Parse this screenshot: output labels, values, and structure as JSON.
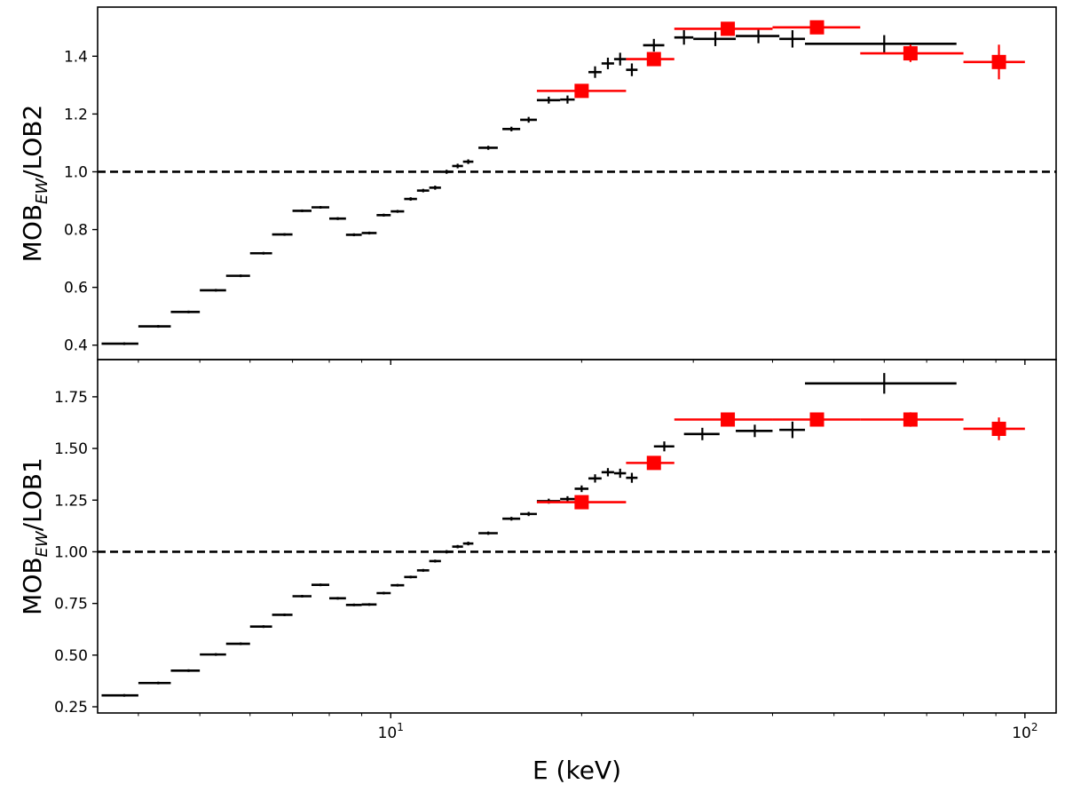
{
  "chart_data": [
    {
      "type": "scatter",
      "panel": "top",
      "ylabel": {
        "main": "MOB",
        "sub": "EW",
        "rest": "/LOB2"
      },
      "xlabel": "",
      "xscale": "log",
      "xlim": [
        3.45,
        112
      ],
      "ylim": [
        0.35,
        1.57
      ],
      "yticks": [
        "0.4",
        "0.6",
        "0.8",
        "1.0",
        "1.2",
        "1.4"
      ],
      "reference_line": {
        "y": 1.0,
        "style": "dashed"
      },
      "grid": false,
      "series": [
        {
          "color": "#000000",
          "marker": "errorbar",
          "points": [
            {
              "x": 3.8,
              "y": 0.405,
              "xlo": 3.5,
              "xhi": 4.0,
              "yerr": 0.004
            },
            {
              "x": 4.3,
              "y": 0.465,
              "xlo": 4.0,
              "xhi": 4.5,
              "yerr": 0.004
            },
            {
              "x": 4.8,
              "y": 0.515,
              "xlo": 4.5,
              "xhi": 5.0,
              "yerr": 0.004
            },
            {
              "x": 5.3,
              "y": 0.59,
              "xlo": 5.0,
              "xhi": 5.5,
              "yerr": 0.004
            },
            {
              "x": 5.8,
              "y": 0.64,
              "xlo": 5.5,
              "xhi": 6.0,
              "yerr": 0.004
            },
            {
              "x": 6.3,
              "y": 0.718,
              "xlo": 6.0,
              "xhi": 6.5,
              "yerr": 0.004
            },
            {
              "x": 6.8,
              "y": 0.783,
              "xlo": 6.5,
              "xhi": 7.0,
              "yerr": 0.004
            },
            {
              "x": 7.25,
              "y": 0.865,
              "xlo": 7.0,
              "xhi": 7.5,
              "yerr": 0.004
            },
            {
              "x": 7.75,
              "y": 0.877,
              "xlo": 7.5,
              "xhi": 8.0,
              "yerr": 0.004
            },
            {
              "x": 8.25,
              "y": 0.838,
              "xlo": 8.0,
              "xhi": 8.5,
              "yerr": 0.005
            },
            {
              "x": 8.75,
              "y": 0.782,
              "xlo": 8.5,
              "xhi": 9.0,
              "yerr": 0.005
            },
            {
              "x": 9.25,
              "y": 0.788,
              "xlo": 9.0,
              "xhi": 9.5,
              "yerr": 0.005
            },
            {
              "x": 9.75,
              "y": 0.85,
              "xlo": 9.5,
              "xhi": 10.0,
              "yerr": 0.005
            },
            {
              "x": 10.25,
              "y": 0.863,
              "xlo": 10.0,
              "xhi": 10.5,
              "yerr": 0.005
            },
            {
              "x": 10.75,
              "y": 0.906,
              "xlo": 10.5,
              "xhi": 11.0,
              "yerr": 0.006
            },
            {
              "x": 11.25,
              "y": 0.935,
              "xlo": 11.0,
              "xhi": 11.5,
              "yerr": 0.006
            },
            {
              "x": 11.75,
              "y": 0.945,
              "xlo": 11.5,
              "xhi": 12.0,
              "yerr": 0.007
            },
            {
              "x": 12.25,
              "y": 1.0,
              "xlo": 12.0,
              "xhi": 12.5,
              "yerr": 0.007
            },
            {
              "x": 12.75,
              "y": 1.02,
              "xlo": 12.5,
              "xhi": 13.0,
              "yerr": 0.008
            },
            {
              "x": 13.25,
              "y": 1.035,
              "xlo": 13.0,
              "xhi": 13.5,
              "yerr": 0.008
            },
            {
              "x": 14.25,
              "y": 1.083,
              "xlo": 13.75,
              "xhi": 14.75,
              "yerr": 0.007
            },
            {
              "x": 15.5,
              "y": 1.148,
              "xlo": 15.0,
              "xhi": 16.0,
              "yerr": 0.008
            },
            {
              "x": 16.5,
              "y": 1.18,
              "xlo": 16.0,
              "xhi": 17.0,
              "yerr": 0.01
            },
            {
              "x": 17.75,
              "y": 1.248,
              "xlo": 17.0,
              "xhi": 18.5,
              "yerr": 0.012
            },
            {
              "x": 19.0,
              "y": 1.25,
              "xlo": 18.5,
              "xhi": 19.5,
              "yerr": 0.014
            },
            {
              "x": 20.0,
              "y": 1.283,
              "xlo": 19.5,
              "xhi": 20.5,
              "yerr": 0.016
            },
            {
              "x": 21.0,
              "y": 1.345,
              "xlo": 20.5,
              "xhi": 21.5,
              "yerr": 0.02
            },
            {
              "x": 22.0,
              "y": 1.375,
              "xlo": 21.5,
              "xhi": 22.5,
              "yerr": 0.02
            },
            {
              "x": 23.0,
              "y": 1.39,
              "xlo": 22.5,
              "xhi": 23.5,
              "yerr": 0.022
            },
            {
              "x": 24.0,
              "y": 1.353,
              "xlo": 23.5,
              "xhi": 24.5,
              "yerr": 0.022
            },
            {
              "x": 26.0,
              "y": 1.438,
              "xlo": 25.0,
              "xhi": 27.0,
              "yerr": 0.022
            },
            {
              "x": 29.0,
              "y": 1.465,
              "xlo": 28.0,
              "xhi": 30.0,
              "yerr": 0.025
            },
            {
              "x": 32.5,
              "y": 1.46,
              "xlo": 30.0,
              "xhi": 35.0,
              "yerr": 0.025
            },
            {
              "x": 38.0,
              "y": 1.47,
              "xlo": 35.0,
              "xhi": 41.0,
              "yerr": 0.025
            },
            {
              "x": 43.0,
              "y": 1.46,
              "xlo": 41.0,
              "xhi": 45.0,
              "yerr": 0.03
            },
            {
              "x": 60.0,
              "y": 1.443,
              "xlo": 45.0,
              "xhi": 78.0,
              "yerr": 0.03
            }
          ]
        },
        {
          "color": "#ff0000",
          "marker": "square",
          "points": [
            {
              "x": 20.0,
              "y": 1.28,
              "xlo": 17.0,
              "xhi": 23.5,
              "yerr": 0.012
            },
            {
              "x": 26.0,
              "y": 1.39,
              "xlo": 23.5,
              "xhi": 28.0,
              "yerr": 0.015
            },
            {
              "x": 34.0,
              "y": 1.495,
              "xlo": 28.0,
              "xhi": 40.0,
              "yerr": 0.018
            },
            {
              "x": 47.0,
              "y": 1.5,
              "xlo": 40.0,
              "xhi": 55.0,
              "yerr": 0.02
            },
            {
              "x": 66.0,
              "y": 1.41,
              "xlo": 55.0,
              "xhi": 80.0,
              "yerr": 0.03
            },
            {
              "x": 91.0,
              "y": 1.38,
              "xlo": 80.0,
              "xhi": 100.0,
              "yerr": 0.06
            }
          ]
        }
      ]
    },
    {
      "type": "scatter",
      "panel": "bottom",
      "ylabel": {
        "main": "MOB",
        "sub": "EW",
        "rest": "/LOB1"
      },
      "xlabel": "E (keV)",
      "xscale": "log",
      "xlim": [
        3.45,
        112
      ],
      "xticks": [
        {
          "value": 10,
          "base": "10",
          "exp": "1"
        },
        {
          "value": 100,
          "base": "10",
          "exp": "2"
        }
      ],
      "ylim": [
        0.22,
        1.93
      ],
      "yticks": [
        "0.25",
        "0.50",
        "0.75",
        "1.00",
        "1.25",
        "1.50",
        "1.75"
      ],
      "reference_line": {
        "y": 1.0,
        "style": "dashed"
      },
      "grid": false,
      "series": [
        {
          "color": "#000000",
          "marker": "errorbar",
          "points": [
            {
              "x": 3.8,
              "y": 0.305,
              "xlo": 3.5,
              "xhi": 4.0,
              "yerr": 0.004
            },
            {
              "x": 4.3,
              "y": 0.365,
              "xlo": 4.0,
              "xhi": 4.5,
              "yerr": 0.004
            },
            {
              "x": 4.8,
              "y": 0.425,
              "xlo": 4.5,
              "xhi": 5.0,
              "yerr": 0.004
            },
            {
              "x": 5.3,
              "y": 0.503,
              "xlo": 5.0,
              "xhi": 5.5,
              "yerr": 0.004
            },
            {
              "x": 5.8,
              "y": 0.555,
              "xlo": 5.5,
              "xhi": 6.0,
              "yerr": 0.004
            },
            {
              "x": 6.3,
              "y": 0.638,
              "xlo": 6.0,
              "xhi": 6.5,
              "yerr": 0.004
            },
            {
              "x": 6.8,
              "y": 0.695,
              "xlo": 6.5,
              "xhi": 7.0,
              "yerr": 0.004
            },
            {
              "x": 7.25,
              "y": 0.785,
              "xlo": 7.0,
              "xhi": 7.5,
              "yerr": 0.004
            },
            {
              "x": 7.75,
              "y": 0.84,
              "xlo": 7.5,
              "xhi": 8.0,
              "yerr": 0.004
            },
            {
              "x": 8.25,
              "y": 0.775,
              "xlo": 8.0,
              "xhi": 8.5,
              "yerr": 0.005
            },
            {
              "x": 8.75,
              "y": 0.743,
              "xlo": 8.5,
              "xhi": 9.0,
              "yerr": 0.005
            },
            {
              "x": 9.25,
              "y": 0.745,
              "xlo": 9.0,
              "xhi": 9.5,
              "yerr": 0.005
            },
            {
              "x": 9.75,
              "y": 0.8,
              "xlo": 9.5,
              "xhi": 10.0,
              "yerr": 0.005
            },
            {
              "x": 10.25,
              "y": 0.838,
              "xlo": 10.0,
              "xhi": 10.5,
              "yerr": 0.006
            },
            {
              "x": 10.75,
              "y": 0.878,
              "xlo": 10.5,
              "xhi": 11.0,
              "yerr": 0.006
            },
            {
              "x": 11.25,
              "y": 0.91,
              "xlo": 11.0,
              "xhi": 11.5,
              "yerr": 0.007
            },
            {
              "x": 11.75,
              "y": 0.955,
              "xlo": 11.5,
              "xhi": 12.0,
              "yerr": 0.007
            },
            {
              "x": 12.25,
              "y": 1.0,
              "xlo": 12.0,
              "xhi": 12.5,
              "yerr": 0.008
            },
            {
              "x": 12.75,
              "y": 1.025,
              "xlo": 12.5,
              "xhi": 13.0,
              "yerr": 0.008
            },
            {
              "x": 13.25,
              "y": 1.04,
              "xlo": 13.0,
              "xhi": 13.5,
              "yerr": 0.009
            },
            {
              "x": 14.25,
              "y": 1.09,
              "xlo": 13.75,
              "xhi": 14.75,
              "yerr": 0.008
            },
            {
              "x": 15.5,
              "y": 1.16,
              "xlo": 15.0,
              "xhi": 16.0,
              "yerr": 0.009
            },
            {
              "x": 16.5,
              "y": 1.183,
              "xlo": 16.0,
              "xhi": 17.0,
              "yerr": 0.01
            },
            {
              "x": 17.75,
              "y": 1.245,
              "xlo": 17.0,
              "xhi": 18.5,
              "yerr": 0.012
            },
            {
              "x": 19.0,
              "y": 1.255,
              "xlo": 18.5,
              "xhi": 19.5,
              "yerr": 0.014
            },
            {
              "x": 20.0,
              "y": 1.305,
              "xlo": 19.5,
              "xhi": 20.5,
              "yerr": 0.016
            },
            {
              "x": 21.0,
              "y": 1.355,
              "xlo": 20.5,
              "xhi": 21.5,
              "yerr": 0.02
            },
            {
              "x": 22.0,
              "y": 1.385,
              "xlo": 21.5,
              "xhi": 22.5,
              "yerr": 0.02
            },
            {
              "x": 23.0,
              "y": 1.38,
              "xlo": 22.5,
              "xhi": 23.5,
              "yerr": 0.022
            },
            {
              "x": 24.0,
              "y": 1.358,
              "xlo": 23.5,
              "xhi": 24.5,
              "yerr": 0.024
            },
            {
              "x": 27.0,
              "y": 1.51,
              "xlo": 26.0,
              "xhi": 28.0,
              "yerr": 0.024
            },
            {
              "x": 31.0,
              "y": 1.57,
              "xlo": 29.0,
              "xhi": 33.0,
              "yerr": 0.03
            },
            {
              "x": 37.5,
              "y": 1.585,
              "xlo": 35.0,
              "xhi": 40.0,
              "yerr": 0.03
            },
            {
              "x": 43.0,
              "y": 1.59,
              "xlo": 41.0,
              "xhi": 45.0,
              "yerr": 0.04
            },
            {
              "x": 60.0,
              "y": 1.815,
              "xlo": 45.0,
              "xhi": 78.0,
              "yerr": 0.05
            }
          ]
        },
        {
          "color": "#ff0000",
          "marker": "square",
          "points": [
            {
              "x": 20.0,
              "y": 1.24,
              "xlo": 17.0,
              "xhi": 23.5,
              "yerr": 0.015
            },
            {
              "x": 26.0,
              "y": 1.43,
              "xlo": 23.5,
              "xhi": 28.0,
              "yerr": 0.03
            },
            {
              "x": 34.0,
              "y": 1.64,
              "xlo": 28.0,
              "xhi": 40.0,
              "yerr": 0.02
            },
            {
              "x": 47.0,
              "y": 1.64,
              "xlo": 40.0,
              "xhi": 55.0,
              "yerr": 0.025
            },
            {
              "x": 66.0,
              "y": 1.64,
              "xlo": 55.0,
              "xhi": 80.0,
              "yerr": 0.035
            },
            {
              "x": 91.0,
              "y": 1.595,
              "xlo": 80.0,
              "xhi": 100.0,
              "yerr": 0.055
            }
          ]
        }
      ]
    }
  ]
}
